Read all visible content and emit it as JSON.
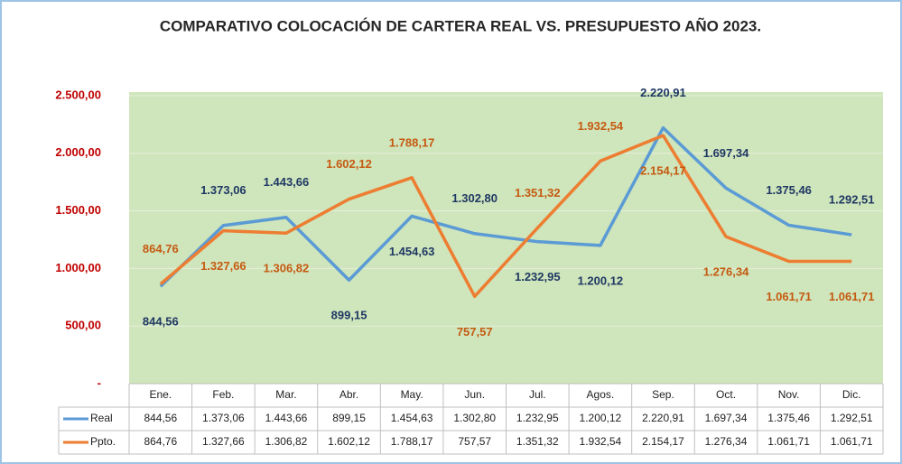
{
  "chart_data": {
    "type": "line",
    "title": "COMPARATIVO  COLOCACIÓN  DE CARTERA REAL VS. PRESUPUESTO AÑO 2023.",
    "categories": [
      "Ene.",
      "Feb.",
      "Mar.",
      "Abr.",
      "May.",
      "Jun.",
      "Jul.",
      "Agos.",
      "Sep.",
      "Oct.",
      "Nov.",
      "Dic."
    ],
    "series": [
      {
        "name": "Real",
        "color": "#5b9bd5",
        "label_color": "#1f3864",
        "values": [
          844.56,
          1373.06,
          1443.66,
          899.15,
          1454.63,
          1302.8,
          1232.95,
          1200.12,
          2220.91,
          1697.34,
          1375.46,
          1292.51
        ],
        "value_labels": [
          "844,56",
          "1.373,06",
          "1.443,66",
          "899,15",
          "1.454,63",
          "1.302,80",
          "1.232,95",
          "1.200,12",
          "2.220,91",
          "1.697,34",
          "1.375,46",
          "1.292,51"
        ]
      },
      {
        "name": "Ppto.",
        "color": "#ed7d31",
        "label_color": "#c55a11",
        "values": [
          864.76,
          1327.66,
          1306.82,
          1602.12,
          1788.17,
          757.57,
          1351.32,
          1932.54,
          2154.17,
          1276.34,
          1061.71,
          1061.71
        ],
        "value_labels": [
          "864,76",
          "1.327,66",
          "1.306,82",
          "1.602,12",
          "1.788,17",
          "757,57",
          "1.351,32",
          "1.932,54",
          "2.154,17",
          "1.276,34",
          "1.061,71",
          "1.061,71"
        ]
      }
    ],
    "ylim": [
      0,
      2500
    ],
    "yticks": [
      {
        "value": 0,
        "label": "-"
      },
      {
        "value": 500,
        "label": "500,00"
      },
      {
        "value": 1000,
        "label": "1.000,00"
      },
      {
        "value": 1500,
        "label": "1.500,00"
      },
      {
        "value": 2000,
        "label": "2.000,00"
      },
      {
        "value": 2500,
        "label": "2.500,00"
      }
    ],
    "grid": true,
    "plot_background": "#cfe5bb"
  }
}
